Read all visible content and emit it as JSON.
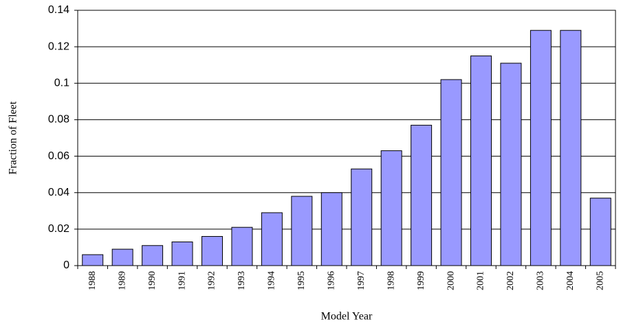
{
  "chart_data": {
    "type": "bar",
    "xlabel": "Model Year",
    "ylabel": "Fraction of Fleet",
    "categories": [
      "1988",
      "1989",
      "1990",
      "1991",
      "1992",
      "1993",
      "1994",
      "1995",
      "1996",
      "1997",
      "1998",
      "1999",
      "2000",
      "2001",
      "2002",
      "2003",
      "2004",
      "2005"
    ],
    "values": [
      0.006,
      0.009,
      0.011,
      0.013,
      0.016,
      0.021,
      0.029,
      0.038,
      0.04,
      0.053,
      0.063,
      0.077,
      0.102,
      0.115,
      0.111,
      0.129,
      0.129,
      0.037
    ],
    "color": "#9999ff",
    "ylim": [
      0,
      0.14
    ],
    "yticks": [
      0,
      0.02,
      0.04,
      0.06,
      0.08,
      0.1,
      0.12,
      0.14
    ],
    "grid": true
  }
}
